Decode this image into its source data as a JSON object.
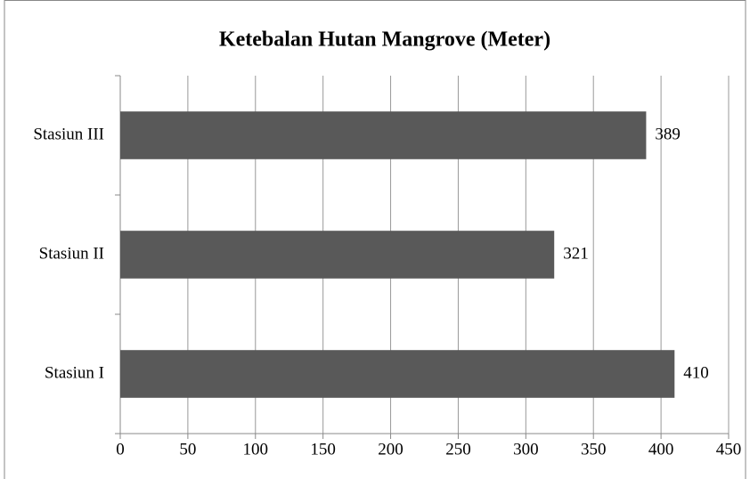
{
  "chart_data": {
    "type": "hbar",
    "title": "Ketebalan Hutan Mangrove  (Meter)",
    "categories": [
      "Stasiun I",
      "Stasiun II",
      "Stasiun III"
    ],
    "values": [
      410,
      321,
      389
    ],
    "color": "#595959",
    "xlim": [
      0,
      450
    ],
    "xticks": [
      0,
      50,
      100,
      150,
      200,
      250,
      300,
      350,
      400,
      450
    ],
    "grid": true
  }
}
